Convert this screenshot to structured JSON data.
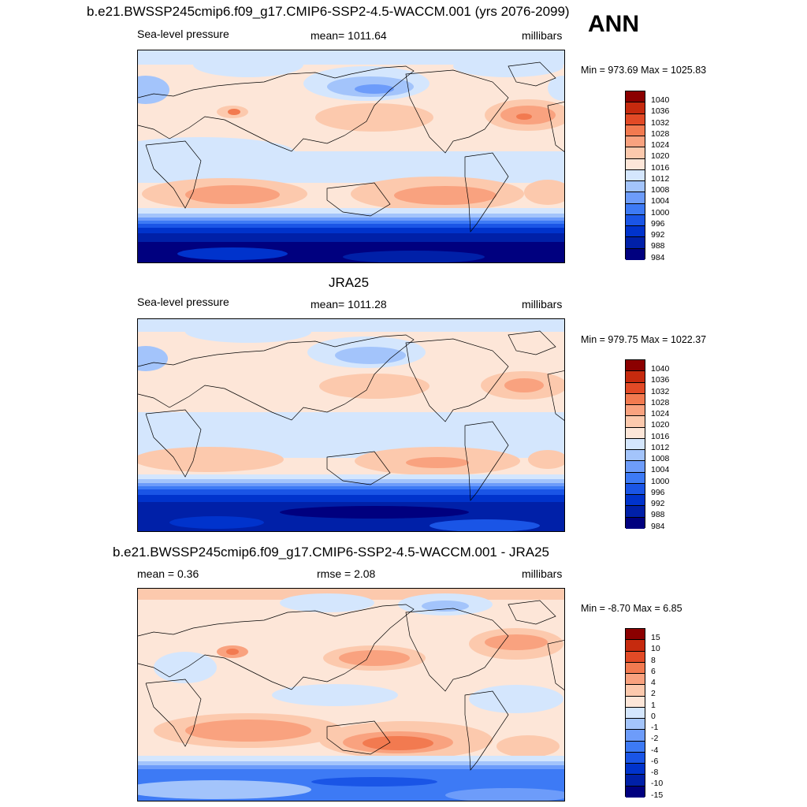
{
  "header": {
    "main_title": "b.e21.BWSSP245cmip6.f09_g17.CMIP6-SSP2-4.5-WACCM.001 (yrs 2076-2099)",
    "season": "ANN"
  },
  "panels": [
    {
      "title": "",
      "left_label": "Sea-level pressure",
      "center_label": "mean= 1011.64",
      "right_label": "millibars",
      "minmax": "Min = 973.69 Max = 1025.83",
      "colorbar_labels": [
        "1040",
        "1036",
        "1032",
        "1028",
        "1024",
        "1020",
        "1016",
        "1012",
        "1008",
        "1004",
        "1000",
        "996",
        "992",
        "988",
        "984"
      ]
    },
    {
      "title": "JRA25",
      "left_label": "Sea-level pressure",
      "center_label": "mean= 1011.28",
      "right_label": "millibars",
      "minmax": "Min = 979.75 Max = 1022.37",
      "colorbar_labels": [
        "1040",
        "1036",
        "1032",
        "1028",
        "1024",
        "1020",
        "1016",
        "1012",
        "1008",
        "1004",
        "1000",
        "996",
        "992",
        "988",
        "984"
      ]
    },
    {
      "title": "b.e21.BWSSP245cmip6.f09_g17.CMIP6-SSP2-4.5-WACCM.001 - JRA25",
      "left_label": "mean =   0.36",
      "center_label": "rmse =   2.08",
      "right_label": "millibars",
      "minmax": "Min =  -8.70 Max =   6.85",
      "colorbar_labels": [
        "15",
        "10",
        "8",
        "6",
        "4",
        "2",
        "1",
        "0",
        "-1",
        "-2",
        "-4",
        "-6",
        "-8",
        "-10",
        "-15"
      ]
    }
  ],
  "chart_data": [
    {
      "type": "heatmap",
      "title": "b.e21.BWSSP245cmip6.f09_g17.CMIP6-SSP2-4.5-WACCM.001 (yrs 2076-2099)",
      "variable": "Sea-level pressure",
      "units": "millibars",
      "mean": 1011.64,
      "min": 973.69,
      "max": 1025.83,
      "levels": [
        984,
        988,
        992,
        996,
        1000,
        1004,
        1008,
        1012,
        1016,
        1020,
        1024,
        1028,
        1032,
        1036,
        1040
      ],
      "colors": [
        "#00007f",
        "#0020a8",
        "#0033cc",
        "#1a55e6",
        "#3d7af5",
        "#6d9cfa",
        "#a3c4fb",
        "#d4e6fd",
        "#fde6d8",
        "#fcc9ad",
        "#f9a27f",
        "#f27a50",
        "#e24a26",
        "#c62a0e",
        "#8b0000"
      ]
    },
    {
      "type": "heatmap",
      "title": "JRA25",
      "variable": "Sea-level pressure",
      "units": "millibars",
      "mean": 1011.28,
      "min": 979.75,
      "max": 1022.37,
      "levels": [
        984,
        988,
        992,
        996,
        1000,
        1004,
        1008,
        1012,
        1016,
        1020,
        1024,
        1028,
        1032,
        1036,
        1040
      ],
      "colors": [
        "#00007f",
        "#0020a8",
        "#0033cc",
        "#1a55e6",
        "#3d7af5",
        "#6d9cfa",
        "#a3c4fb",
        "#d4e6fd",
        "#fde6d8",
        "#fcc9ad",
        "#f9a27f",
        "#f27a50",
        "#e24a26",
        "#c62a0e",
        "#8b0000"
      ]
    },
    {
      "type": "heatmap",
      "title": "b.e21.BWSSP245cmip6.f09_g17.CMIP6-SSP2-4.5-WACCM.001 - JRA25",
      "units": "millibars",
      "mean": 0.36,
      "rmse": 2.08,
      "min": -8.7,
      "max": 6.85,
      "levels": [
        -15,
        -10,
        -8,
        -6,
        -4,
        -2,
        -1,
        0,
        1,
        2,
        4,
        6,
        8,
        10,
        15
      ],
      "colors": [
        "#00007f",
        "#0020a8",
        "#0033cc",
        "#1a55e6",
        "#3d7af5",
        "#6d9cfa",
        "#a3c4fb",
        "#d4e6fd",
        "#fde6d8",
        "#fcc9ad",
        "#f9a27f",
        "#f27a50",
        "#e24a26",
        "#c62a0e",
        "#8b0000"
      ]
    }
  ]
}
